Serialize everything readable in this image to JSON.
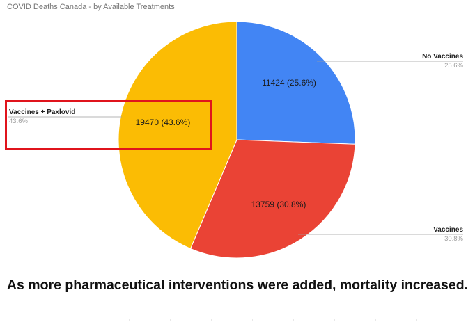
{
  "title": "COVID Deaths Canada - by Available Treatments",
  "caption": "As more pharmaceutical interventions were added, mortality increased.",
  "chart_data": {
    "type": "pie",
    "title": "COVID Deaths Canada - by Available Treatments",
    "slices": [
      {
        "label": "No Vaccines",
        "value": 11424,
        "percent": "25.6%",
        "color": "#4285f4",
        "slice_label": "11424 (25.6%)"
      },
      {
        "label": "Vaccines",
        "value": 13759,
        "percent": "30.8%",
        "color": "#ea4335",
        "slice_label": "13759 (30.8%)"
      },
      {
        "label": "Vaccines + Paxlovid",
        "value": 19470,
        "percent": "43.6%",
        "color": "#fbbc04",
        "slice_label": "19470 (43.6%)"
      }
    ],
    "start_angle": "12 o'clock",
    "direction": "clockwise",
    "legend": "labels with leader lines"
  },
  "annotation": {
    "highlight": "Vaccines + Paxlovid",
    "color": "#e0141c"
  }
}
